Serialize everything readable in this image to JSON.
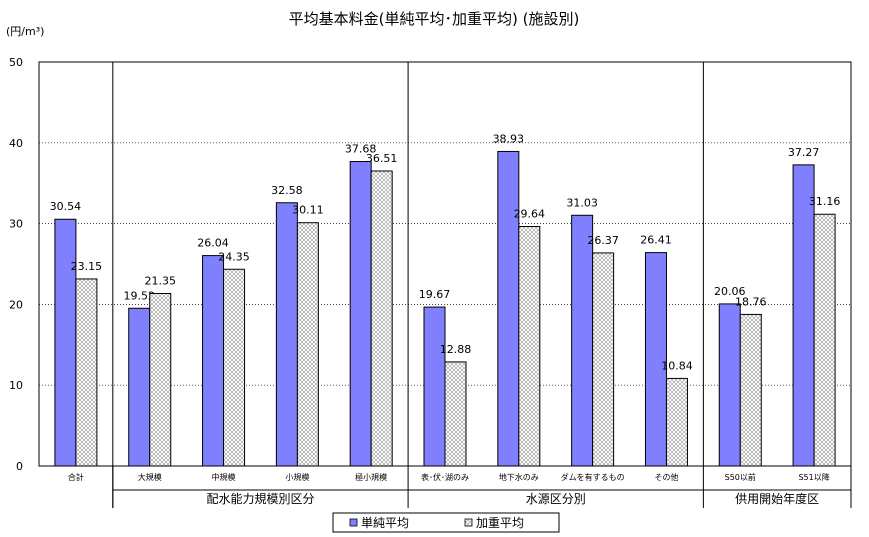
{
  "chart_data": {
    "type": "bar",
    "title": "平均基本料金(単純平均･加重平均) (施設別)",
    "ylabel": "(円/m³)",
    "ylim": [
      0,
      50
    ],
    "yticks": [
      0,
      10,
      20,
      30,
      40,
      50
    ],
    "grid": true,
    "legend_position": "bottom",
    "categories": [
      "合計",
      "大規模",
      "中規模",
      "小規模",
      "極小規模",
      "表･伏･湖のみ",
      "地下水のみ",
      "ダムを有するもの",
      "その他",
      "S50以前",
      "S51以降"
    ],
    "groups": [
      {
        "label": "",
        "categories": [
          "合計"
        ]
      },
      {
        "label": "配水能力規模別区分",
        "categories": [
          "大規模",
          "中規模",
          "小規模",
          "極小規模"
        ]
      },
      {
        "label": "水源区分別",
        "categories": [
          "表･伏･湖のみ",
          "地下水のみ",
          "ダムを有するもの",
          "その他"
        ]
      },
      {
        "label": "供用開始年度区",
        "categories": [
          "S50以前",
          "S51以降"
        ]
      }
    ],
    "series": [
      {
        "name": "単純平均",
        "color": "#8080ff",
        "values": [
          30.54,
          19.52,
          26.04,
          32.58,
          37.68,
          19.67,
          38.93,
          31.03,
          26.41,
          20.06,
          37.27
        ],
        "labels": [
          "30.54",
          "19.52",
          "26.04",
          "32.58",
          "37.68",
          "19.67",
          "38.93",
          "31.03",
          "26.41",
          "20.06",
          "37.27"
        ]
      },
      {
        "name": "加重平均",
        "color": "#ffffff",
        "pattern": "crosshatch",
        "values": [
          23.15,
          21.35,
          24.35,
          30.11,
          36.51,
          12.88,
          29.64,
          26.37,
          10.84,
          18.76,
          31.16
        ],
        "labels": [
          "23.15",
          "21.35",
          "24.35",
          "30.11",
          "36.51",
          "12.88",
          "29.64",
          "26.37",
          "10.84",
          "18.76",
          "31.16"
        ]
      }
    ]
  }
}
